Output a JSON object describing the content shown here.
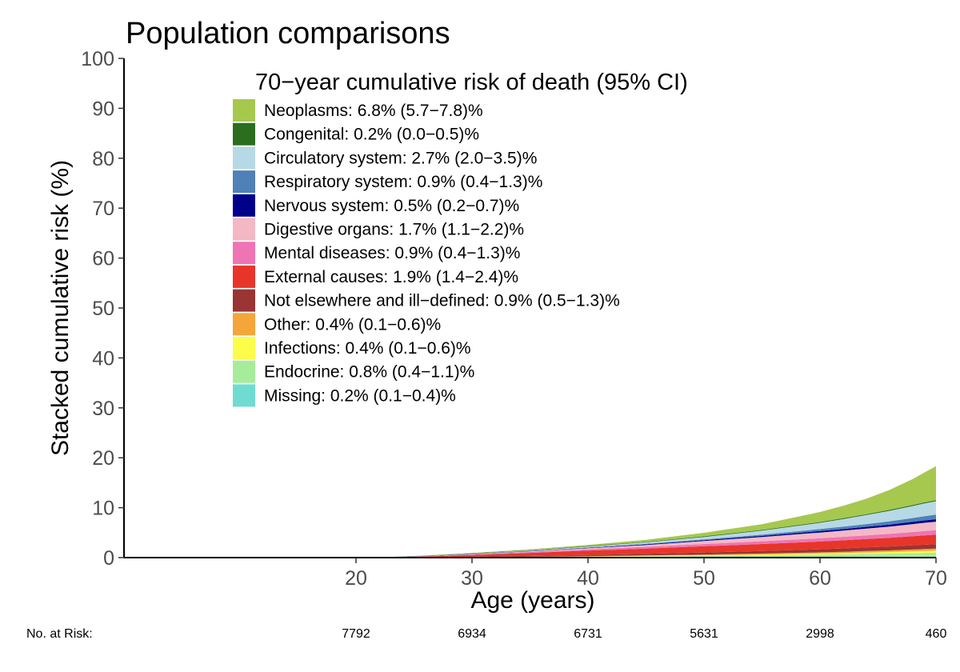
{
  "chart_data": {
    "type": "area",
    "stacked": true,
    "title": "Population comparisons",
    "xlabel": "Age (years)",
    "ylabel": "Stacked cumulative risk (%)",
    "xlim": [
      0,
      70
    ],
    "ylim": [
      0,
      100
    ],
    "x_ticks": [
      20,
      30,
      40,
      50,
      60,
      70
    ],
    "y_ticks": [
      0,
      10,
      20,
      30,
      40,
      50,
      60,
      70,
      80,
      90,
      100
    ],
    "grid": false,
    "legend": {
      "title": "70−year cumulative risk of death (95% CI)",
      "position": "top-center"
    },
    "x": [
      0,
      20,
      23,
      26,
      30,
      35,
      40,
      45,
      50,
      55,
      60,
      62,
      64,
      66,
      68,
      69,
      70
    ],
    "series": [
      {
        "name": "Neoplasms: 6.8% (5.7−7.8)%",
        "color": "#a6c84f",
        "values": [
          0,
          0,
          0.02,
          0.04,
          0.08,
          0.12,
          0.25,
          0.4,
          0.7,
          1.15,
          2.0,
          2.5,
          3.1,
          4.0,
          5.2,
          6.0,
          6.8
        ]
      },
      {
        "name": "Congenital: 0.2% (0.0−0.5)%",
        "color": "#2b6e1d",
        "values": [
          0,
          0,
          0.02,
          0.04,
          0.06,
          0.08,
          0.1,
          0.11,
          0.13,
          0.14,
          0.16,
          0.17,
          0.18,
          0.19,
          0.2,
          0.2,
          0.2
        ]
      },
      {
        "name": "Circulatory system: 2.7% (2.0−3.5)%",
        "color": "#b7d9e5",
        "values": [
          0,
          0,
          0,
          0.02,
          0.05,
          0.1,
          0.18,
          0.3,
          0.5,
          0.8,
          1.25,
          1.5,
          1.8,
          2.1,
          2.4,
          2.55,
          2.7
        ]
      },
      {
        "name": "Respiratory system: 0.9% (0.4−1.3)%",
        "color": "#4f81b8",
        "values": [
          0,
          0,
          0,
          0.01,
          0.02,
          0.04,
          0.06,
          0.1,
          0.15,
          0.25,
          0.4,
          0.47,
          0.55,
          0.65,
          0.78,
          0.85,
          0.9
        ]
      },
      {
        "name": "Nervous system: 0.5% (0.2−0.7)%",
        "color": "#00008b",
        "values": [
          0,
          0,
          0.01,
          0.02,
          0.04,
          0.06,
          0.09,
          0.12,
          0.16,
          0.22,
          0.3,
          0.33,
          0.37,
          0.41,
          0.45,
          0.48,
          0.5
        ]
      },
      {
        "name": "Digestive organs: 1.7% (1.1−2.2)%",
        "color": "#f4b8c5",
        "values": [
          0,
          0,
          0.01,
          0.03,
          0.06,
          0.12,
          0.22,
          0.38,
          0.6,
          0.85,
          1.15,
          1.25,
          1.35,
          1.45,
          1.58,
          1.65,
          1.7
        ]
      },
      {
        "name": "Mental diseases: 0.9% (0.4−1.3)%",
        "color": "#ee74b4",
        "values": [
          0,
          0,
          0.02,
          0.05,
          0.1,
          0.18,
          0.26,
          0.35,
          0.45,
          0.55,
          0.65,
          0.7,
          0.74,
          0.79,
          0.85,
          0.88,
          0.9
        ]
      },
      {
        "name": "External causes: 1.9% (1.4−2.4)%",
        "color": "#e8352a",
        "values": [
          0,
          0,
          0.05,
          0.15,
          0.35,
          0.6,
          0.85,
          1.05,
          1.25,
          1.4,
          1.55,
          1.62,
          1.68,
          1.75,
          1.82,
          1.86,
          1.9
        ]
      },
      {
        "name": "Not elsewhere and ill−defined: 0.9% (0.5−1.3)%",
        "color": "#9b3434",
        "values": [
          0,
          0,
          0.02,
          0.05,
          0.1,
          0.17,
          0.25,
          0.33,
          0.42,
          0.52,
          0.62,
          0.67,
          0.72,
          0.78,
          0.84,
          0.87,
          0.9
        ]
      },
      {
        "name": "Other: 0.4% (0.1−0.6)%",
        "color": "#f4a63b",
        "values": [
          0,
          0,
          0,
          0.01,
          0.02,
          0.04,
          0.07,
          0.1,
          0.14,
          0.18,
          0.23,
          0.26,
          0.29,
          0.32,
          0.36,
          0.38,
          0.4
        ]
      },
      {
        "name": "Infections: 0.4% (0.1−0.6)%",
        "color": "#fcfc4a",
        "values": [
          0,
          0,
          0,
          0.01,
          0.02,
          0.04,
          0.07,
          0.1,
          0.14,
          0.18,
          0.23,
          0.26,
          0.29,
          0.32,
          0.36,
          0.38,
          0.4
        ]
      },
      {
        "name": "Endocrine: 0.8% (0.4−1.1)%",
        "color": "#a7ec9b",
        "values": [
          0,
          0,
          0,
          0.01,
          0.03,
          0.07,
          0.12,
          0.18,
          0.26,
          0.36,
          0.47,
          0.52,
          0.58,
          0.64,
          0.72,
          0.76,
          0.8
        ]
      },
      {
        "name": "Missing: 0.2% (0.1−0.4)%",
        "color": "#6fdcd2",
        "values": [
          0,
          0,
          0,
          0,
          0.01,
          0.02,
          0.03,
          0.05,
          0.07,
          0.09,
          0.12,
          0.13,
          0.15,
          0.16,
          0.18,
          0.19,
          0.2
        ]
      }
    ],
    "risk_table": {
      "label": "No. at Risk:",
      "ages": [
        20,
        30,
        40,
        50,
        60,
        70
      ],
      "counts": [
        "7792",
        "6934",
        "6731",
        "5631",
        "2998",
        "460"
      ]
    }
  }
}
